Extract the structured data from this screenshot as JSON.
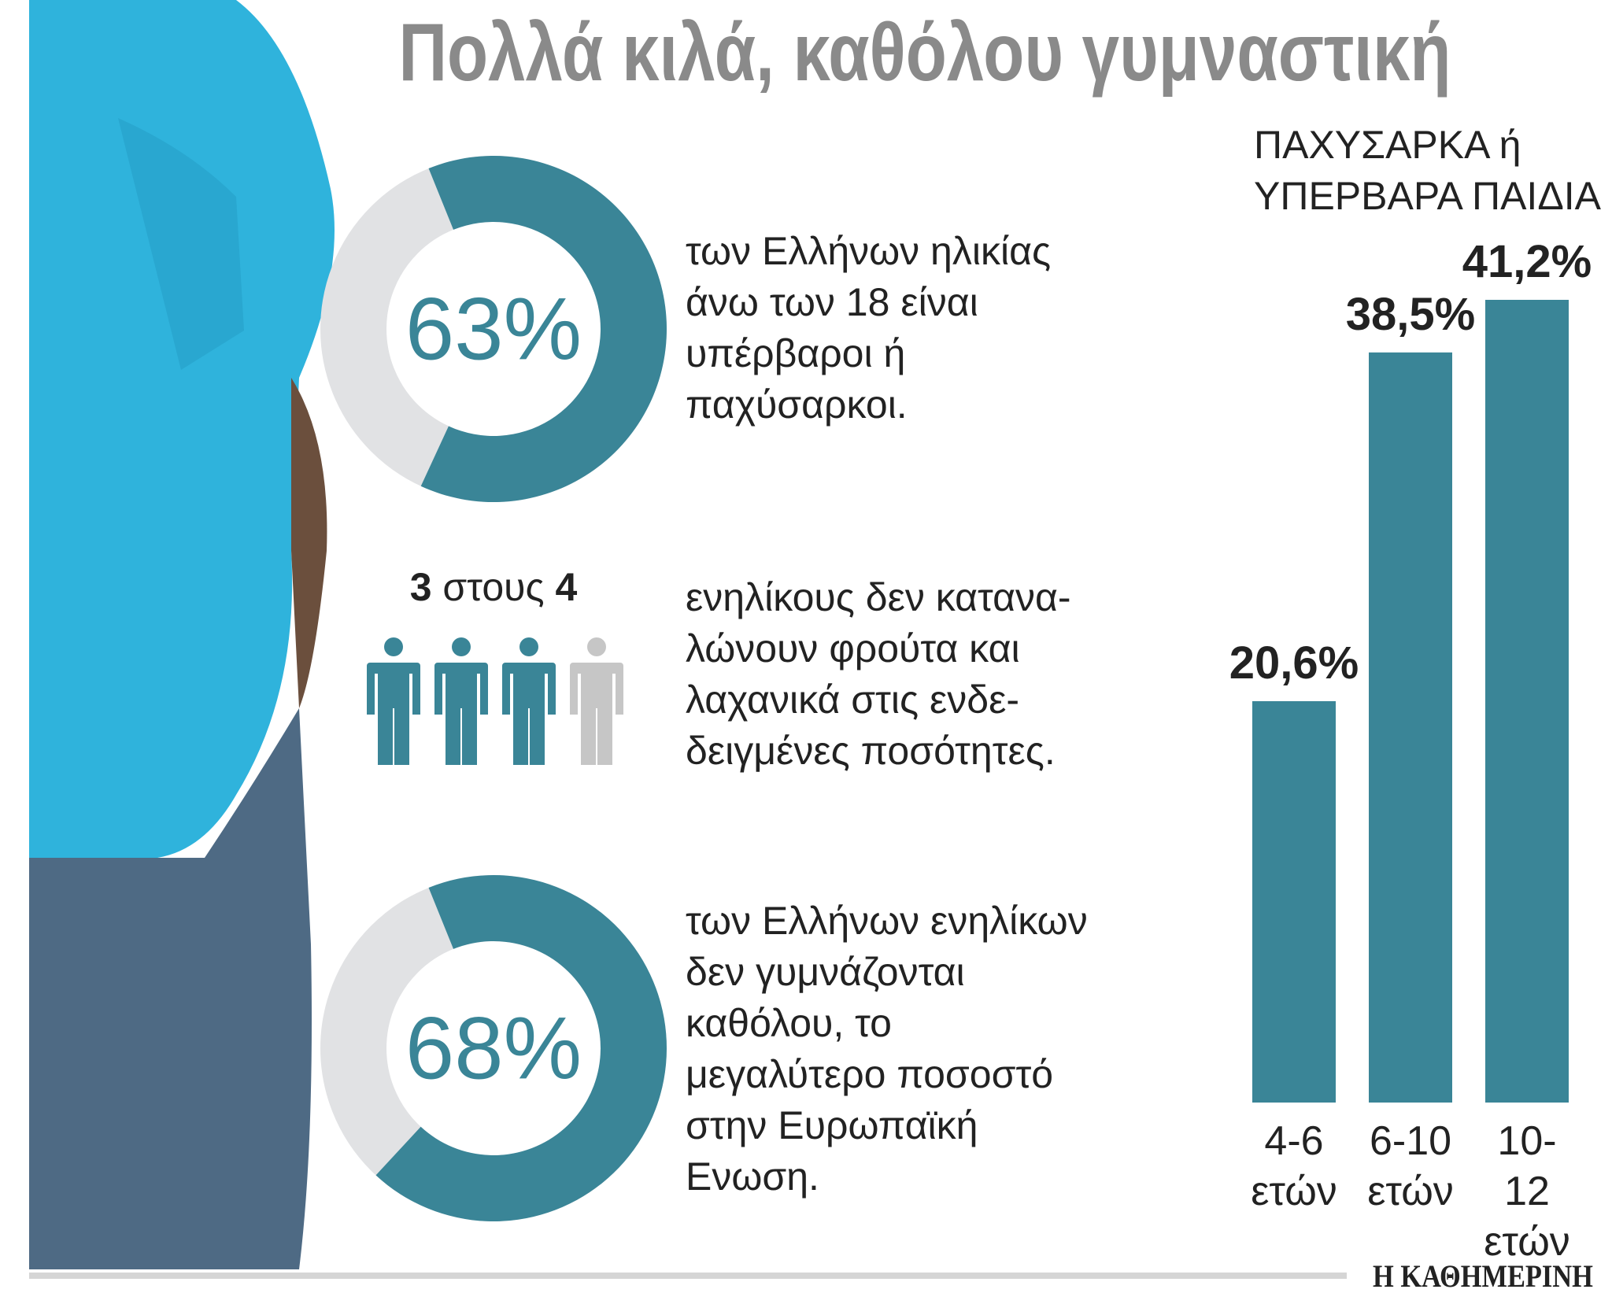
{
  "title": "Πολλά κιλά, καθόλου γυμναστική",
  "source": "Η ΚΑΘΗΜΕΡΙΝΗ",
  "chart_data": [
    {
      "type": "donut",
      "values": [
        63
      ],
      "value_labels": [
        "63%"
      ],
      "color": "#3a8597",
      "text_lines": [
        "των Ελλήνων ηλικίας",
        "άνω των 18 είναι",
        "υπέρβαροι ή",
        "παχύσαρκοι."
      ]
    },
    {
      "type": "pictogram",
      "value": 3,
      "total": 4,
      "word": "στους",
      "color": "#3a8597",
      "text_lines": [
        "ενηλίκους δεν κατανα-",
        "λώνουν φρούτα και",
        "λαχανικά στις ενδε-",
        "δειγμένες ποσότητες."
      ]
    },
    {
      "type": "donut",
      "values": [
        68
      ],
      "value_labels": [
        "68%"
      ],
      "color": "#3a8597",
      "text_lines": [
        "των Ελλήνων ενηλίκων",
        "δεν γυμνάζονται",
        "καθόλου, το",
        "μεγαλύτερο ποσοστό",
        "στην Ευρωπαϊκή",
        "Ενωση."
      ]
    },
    {
      "type": "bar",
      "title_lines": [
        "ΠΑΧΥΣΑΡΚΑ ή",
        "ΥΠΕΡΒΑΡΑ ΠΑΙΔΙΑ"
      ],
      "categories": [
        "4-6 ετών",
        "6-10 ετών",
        "10-12 ετών"
      ],
      "values": [
        20.6,
        38.5,
        41.2
      ],
      "value_labels": [
        "20,6%",
        "38,5%",
        "41,2%"
      ],
      "color": "#3a8597"
    }
  ]
}
